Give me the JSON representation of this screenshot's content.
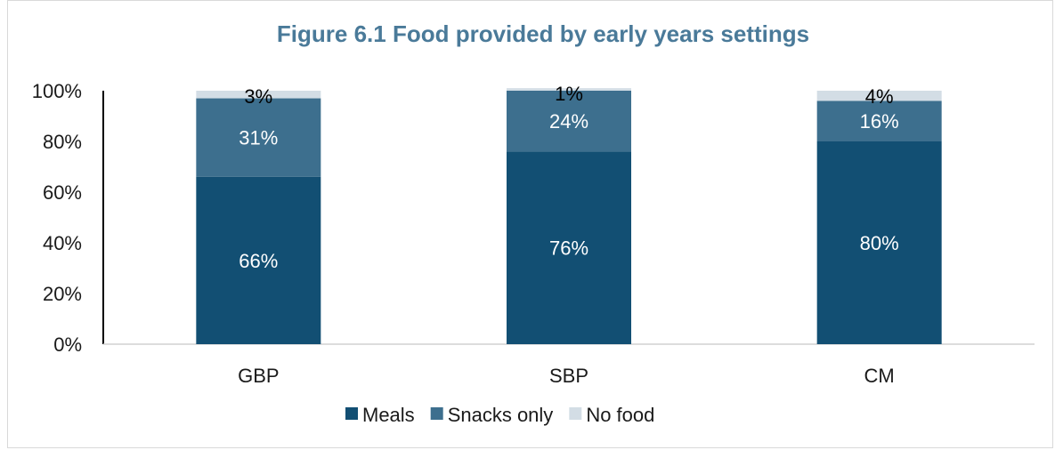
{
  "chart_data": {
    "type": "bar",
    "stacked": true,
    "title": "Figure 6.1 Food provided by early years settings",
    "categories": [
      "GBP",
      "SBP",
      "CM"
    ],
    "series": [
      {
        "name": "Meals",
        "values": [
          66,
          76,
          80
        ],
        "labels": [
          "66%",
          "76%",
          "80%"
        ],
        "color": "#124f73"
      },
      {
        "name": "Snacks only",
        "values": [
          31,
          24,
          16
        ],
        "labels": [
          "31%",
          "24%",
          "16%"
        ],
        "color": "#3d6f8e"
      },
      {
        "name": "No food",
        "values": [
          3,
          1,
          4
        ],
        "labels": [
          "3%",
          "1%",
          "4%"
        ],
        "color": "#d3dde5"
      }
    ],
    "yticks": [
      "0%",
      "20%",
      "40%",
      "60%",
      "80%",
      "100%"
    ],
    "ylim": [
      0,
      100
    ],
    "grid": false,
    "legend_position": "bottom",
    "title_color": "#4a7a99"
  }
}
